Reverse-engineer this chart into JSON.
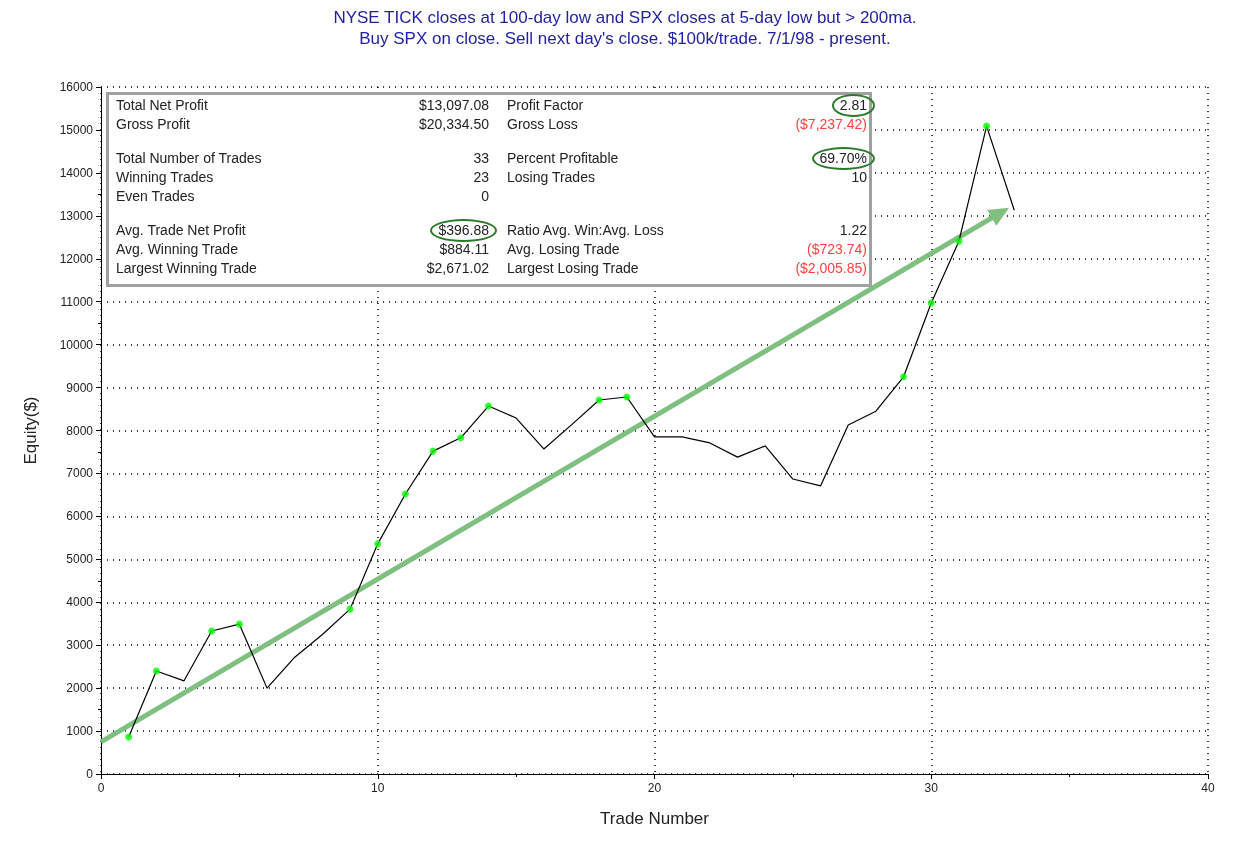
{
  "chart_data": {
    "type": "line",
    "title": "NYSE TICK closes at 100-day low and SPX closes at 5-day low but > 200ma.",
    "subtitle": "Buy SPX on close. Sell next day's close. $100k/trade. 7/1/98 - present.",
    "xlabel": "Trade Number",
    "ylabel": "Equity($)",
    "x": [
      1,
      2,
      3,
      4,
      5,
      6,
      7,
      8,
      9,
      10,
      11,
      12,
      13,
      14,
      15,
      16,
      17,
      18,
      19,
      20,
      21,
      22,
      23,
      24,
      25,
      26,
      27,
      28,
      29,
      30,
      31,
      32,
      33
    ],
    "series": [
      {
        "color": "#000000",
        "values": [
          860,
          2400,
          2170,
          3330,
          3490,
          2000,
          2720,
          3250,
          3840,
          5360,
          6520,
          7520,
          7830,
          8570,
          8290,
          7570,
          8130,
          8710,
          8780,
          7850,
          7850,
          7710,
          7380,
          7640,
          6870,
          6710,
          8130,
          8450,
          9250,
          10970,
          12410,
          15090,
          13130
        ]
      },
      {
        "type": "scatter",
        "color": "#00ff00",
        "x": [
          1,
          2,
          4,
          5,
          9,
          10,
          11,
          12,
          13,
          14,
          18,
          19,
          29,
          30,
          31,
          32
        ],
        "values": [
          860,
          2400,
          3330,
          3490,
          3840,
          5360,
          6520,
          7520,
          7830,
          8570,
          8710,
          8780,
          9250,
          10970,
          12410,
          15090
        ]
      },
      {
        "type": "line",
        "color": "#7fbf7f",
        "x": [
          0,
          32.5
        ],
        "values": [
          750,
          13070
        ]
      }
    ],
    "xlim": [
      0,
      40
    ],
    "xticks": [
      0,
      10,
      20,
      30,
      40
    ],
    "ylim": [
      0,
      16000
    ],
    "yticks": [
      0,
      1000,
      2000,
      3000,
      4000,
      5000,
      6000,
      7000,
      8000,
      9000,
      10000,
      11000,
      12000,
      13000,
      14000,
      15000,
      16000
    ],
    "grid": true,
    "annotations": [
      "Total Net Profit",
      "$13,097.08",
      "Profit Factor",
      "2.81",
      "Gross Profit",
      "$20,334.50",
      "Gross Loss",
      "($7,237.42)",
      "Total Number of Trades",
      "33",
      "Percent Profitable",
      "69.70%",
      "Winning Trades",
      "23",
      "Losing Trades",
      "10",
      "Even Trades",
      "0",
      "Avg. Trade Net Profit",
      "$396.88",
      "Ratio Avg. Win:Avg. Loss",
      "1.22",
      "Avg. Winning Trade",
      "$884.11",
      "Avg. Losing Trade",
      "($723.74)",
      "Largest Winning Trade",
      "$2,671.02",
      "Largest Losing Trade",
      "($2,005.85)"
    ]
  }
}
